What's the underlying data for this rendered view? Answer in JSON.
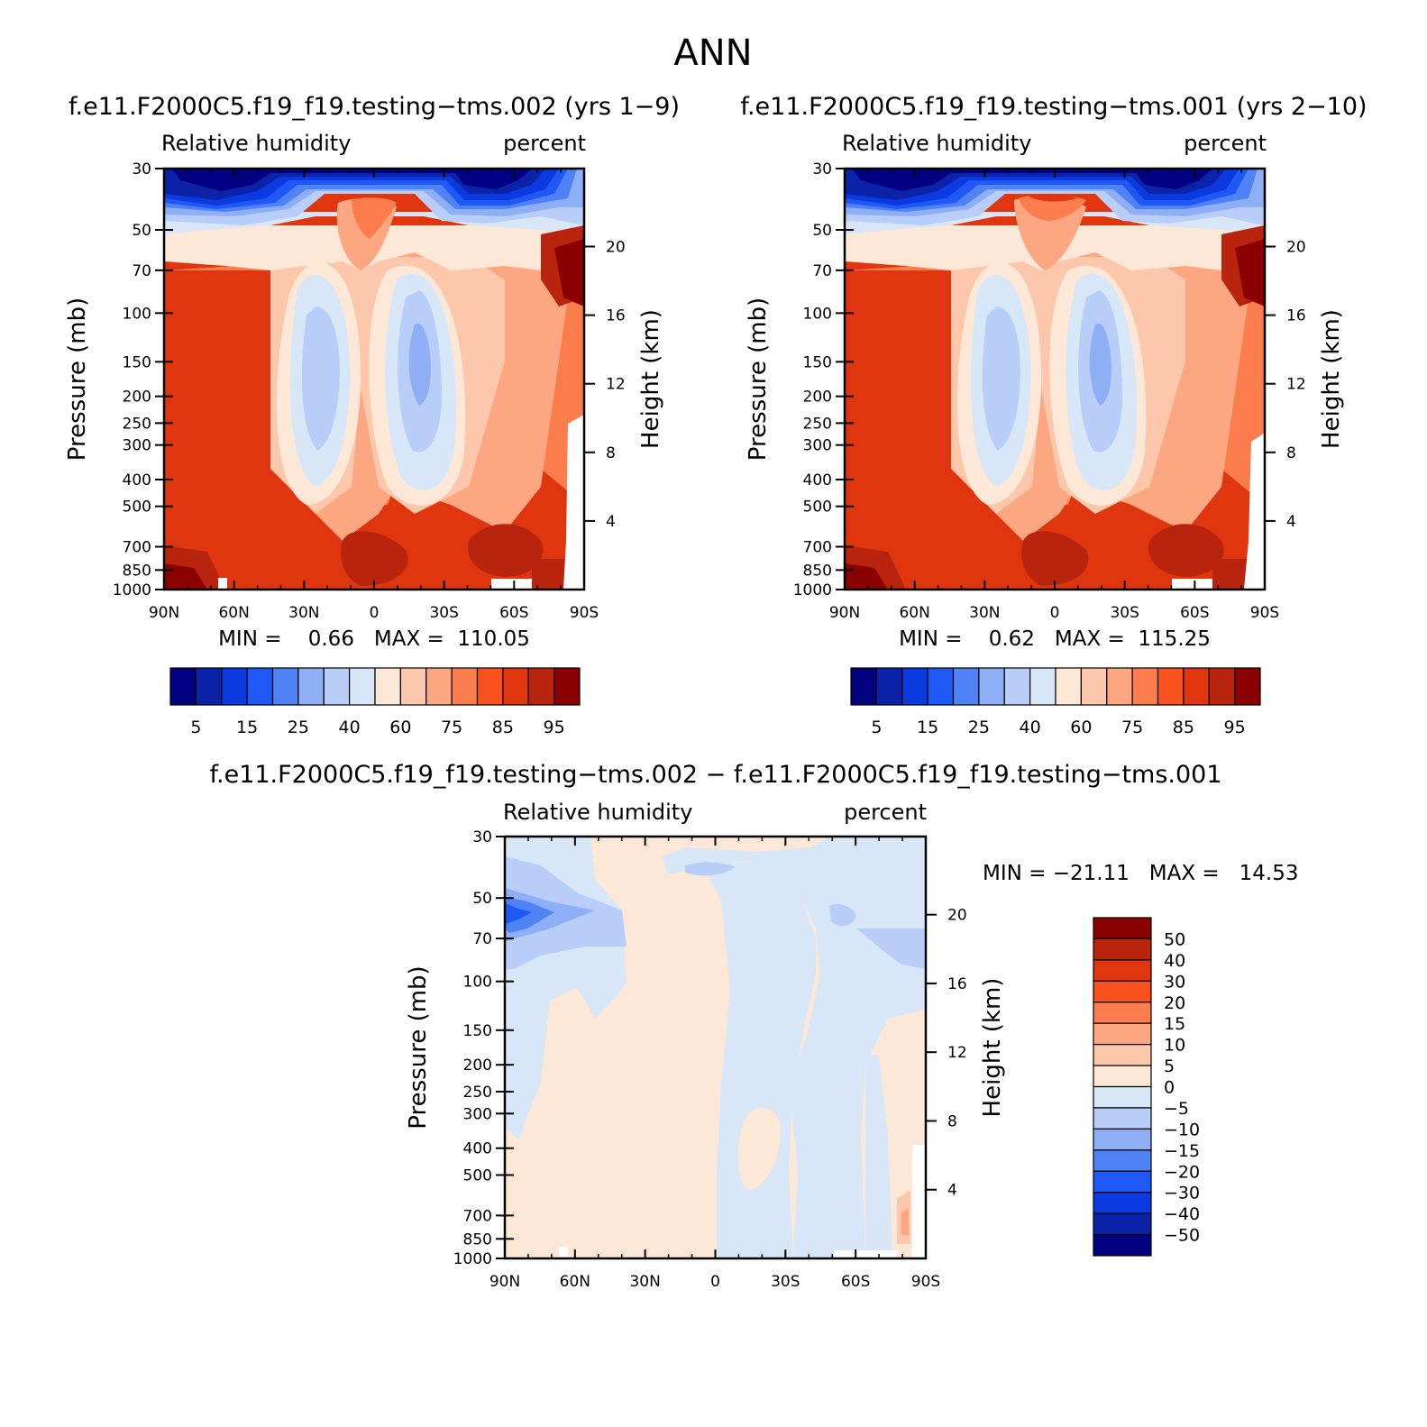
{
  "figure": {
    "title": "ANN"
  },
  "panels": [
    {
      "case_title": "f.e11.F2000C5.f19_f19.testing−tms.002 (yrs 1−9)",
      "left_label": "Relative humidity",
      "right_label": "percent",
      "stats_text": "MIN =    0.66   MAX =  110.05"
    },
    {
      "case_title": "f.e11.F2000C5.f19_f19.testing−tms.001 (yrs 2−10)",
      "left_label": "Relative humidity",
      "right_label": "percent",
      "stats_text": "MIN =    0.62   MAX =  115.25"
    },
    {
      "case_title": "f.e11.F2000C5.f19_f19.testing−tms.002 − f.e11.F2000C5.f19_f19.testing−tms.001",
      "left_label": "Relative humidity",
      "right_label": "percent",
      "stats_text": "MIN = −21.11   MAX =   14.53"
    }
  ],
  "chart_data": [
    {
      "type": "heatmap",
      "title": "f.e11.F2000C5.f19_f19.testing−tms.002 (yrs 1−9)",
      "field": "Relative humidity",
      "units": "percent",
      "xlabel": "",
      "ylabel": "Pressure (mb)",
      "y2label": "Height (km)",
      "x_ticks": [
        "90N",
        "60N",
        "30N",
        "0",
        "30S",
        "60S",
        "90S"
      ],
      "y_ticks": [
        "30",
        "50",
        "70",
        "100",
        "150",
        "200",
        "250",
        "300",
        "400",
        "500",
        "700",
        "850",
        "1000"
      ],
      "y2_ticks": [
        "20",
        "16",
        "12",
        "8",
        "4"
      ],
      "y_range": [
        30,
        1000
      ],
      "y_scale": "log",
      "min": 0.66,
      "max": 110.05,
      "colorbar_labels": [
        "5",
        "15",
        "25",
        "40",
        "60",
        "75",
        "85",
        "95"
      ]
    },
    {
      "type": "heatmap",
      "title": "f.e11.F2000C5.f19_f19.testing−tms.001 (yrs 2−10)",
      "field": "Relative humidity",
      "units": "percent",
      "xlabel": "",
      "ylabel": "Pressure (mb)",
      "y2label": "Height (km)",
      "x_ticks": [
        "90N",
        "60N",
        "30N",
        "0",
        "30S",
        "60S",
        "90S"
      ],
      "y_ticks": [
        "30",
        "50",
        "70",
        "100",
        "150",
        "200",
        "250",
        "300",
        "400",
        "500",
        "700",
        "850",
        "1000"
      ],
      "y2_ticks": [
        "20",
        "16",
        "12",
        "8",
        "4"
      ],
      "y_range": [
        30,
        1000
      ],
      "y_scale": "log",
      "min": 0.62,
      "max": 115.25,
      "colorbar_labels": [
        "5",
        "15",
        "25",
        "40",
        "60",
        "75",
        "85",
        "95"
      ]
    },
    {
      "type": "heatmap",
      "title": "f.e11.F2000C5.f19_f19.testing−tms.002 − f.e11.F2000C5.f19_f19.testing−tms.001",
      "field": "Relative humidity",
      "units": "percent",
      "xlabel": "",
      "ylabel": "Pressure (mb)",
      "y2label": "Height (km)",
      "x_ticks": [
        "90N",
        "60N",
        "30N",
        "0",
        "30S",
        "60S",
        "90S"
      ],
      "y_ticks": [
        "30",
        "50",
        "70",
        "100",
        "150",
        "200",
        "250",
        "300",
        "400",
        "500",
        "700",
        "850",
        "1000"
      ],
      "y2_ticks": [
        "20",
        "16",
        "12",
        "8",
        "4"
      ],
      "y_range": [
        30,
        1000
      ],
      "y_scale": "log",
      "min": -21.11,
      "max": 14.53,
      "colorbar_labels": [
        "50",
        "40",
        "30",
        "20",
        "15",
        "10",
        "5",
        "0",
        "−5",
        "−10",
        "−15",
        "−20",
        "−30",
        "−40",
        "−50"
      ]
    }
  ],
  "palette": [
    "#000080",
    "#0a23a8",
    "#0a3ae0",
    "#1f58f5",
    "#4f82f5",
    "#8eaef5",
    "#b8cdf7",
    "#d8e7f8",
    "#fde7d6",
    "#fcc7aa",
    "#fca682",
    "#fb7c4c",
    "#f9521e",
    "#e0360f",
    "#b8240e",
    "#8b0000"
  ]
}
